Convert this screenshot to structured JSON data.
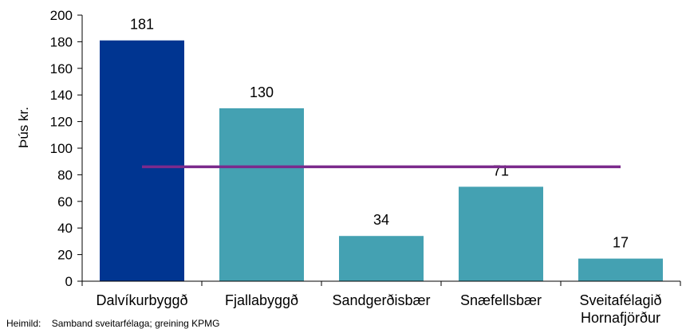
{
  "chart_data": {
    "type": "bar",
    "ylabel": "Þús kr.",
    "ylim": [
      0,
      200
    ],
    "yticks": [
      "0",
      "20",
      "40",
      "60",
      "80",
      "100",
      "120",
      "140",
      "160",
      "180",
      "200"
    ],
    "categories": [
      [
        "Dalvíkurbyggð"
      ],
      [
        "Fjallabyggð"
      ],
      [
        "Sandgerðisbær"
      ],
      [
        "Snæfellsbær"
      ],
      [
        "Sveitafélagið",
        "Hornafjörður"
      ]
    ],
    "values": [
      181,
      130,
      34,
      71,
      17
    ],
    "value_labels": [
      "181",
      "130",
      "34",
      "71",
      "17"
    ],
    "bar_colors": [
      "#003591",
      "#44a1b2",
      "#44a1b2",
      "#44a1b2",
      "#44a1b2"
    ],
    "reference_line": {
      "value": 86,
      "color": "#7b2a8c"
    },
    "grid": false
  },
  "source": {
    "label": "Heimild:",
    "text": "Samband sveitarfélaga; greining KPMG"
  }
}
